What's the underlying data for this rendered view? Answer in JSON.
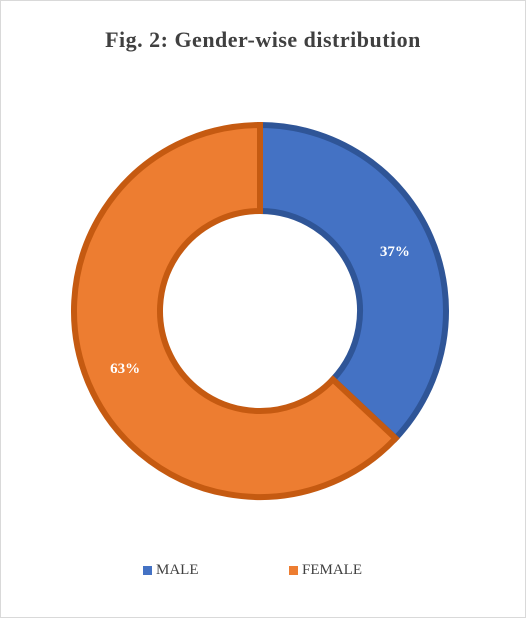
{
  "chart_data": {
    "type": "pie",
    "variant": "doughnut",
    "title": "Fig. 2: Gender-wise distribution",
    "categories": [
      "MALE",
      "FEMALE"
    ],
    "values": [
      37,
      63
    ],
    "labels": [
      "37%",
      "63%"
    ],
    "colors": [
      "#4472C4",
      "#ED7D31"
    ],
    "border_colors": [
      "#2F5597",
      "#C55A11"
    ],
    "legend": "bottom",
    "start_angle_deg": 0,
    "direction": "clockwise"
  }
}
